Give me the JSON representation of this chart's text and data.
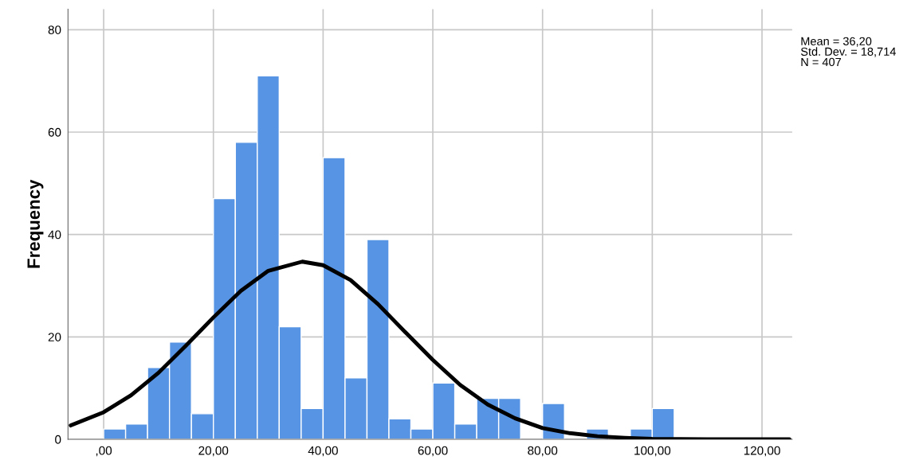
{
  "chart_data": {
    "type": "histogram",
    "ylabel": "Frequency",
    "bins": [
      0,
      4,
      8,
      12,
      16,
      20,
      24,
      28,
      32,
      36,
      40,
      44,
      48,
      52,
      56,
      60,
      64,
      68,
      72,
      76,
      80,
      84,
      88,
      92,
      96,
      100,
      104
    ],
    "values": [
      2,
      3,
      14,
      19,
      5,
      47,
      58,
      71,
      22,
      6,
      55,
      12,
      39,
      4,
      2,
      11,
      3,
      8,
      8,
      0,
      7,
      0,
      2,
      0,
      2,
      6
    ],
    "color": "#5794e3",
    "series": [
      {
        "type": "line",
        "color": "#000000",
        "x": [
          -6,
          0,
          5,
          10,
          15,
          20,
          25,
          30,
          36.2,
          40,
          45,
          50,
          55,
          60,
          65,
          70,
          75,
          80,
          85,
          90,
          95,
          100,
          110,
          125
        ],
        "values": [
          2.7,
          5.3,
          8.6,
          13.0,
          18.3,
          23.8,
          29.0,
          32.9,
          34.7,
          34.0,
          31.1,
          26.4,
          20.9,
          15.5,
          10.6,
          6.8,
          4.1,
          2.2,
          1.2,
          0.6,
          0.3,
          0.1,
          0.0,
          0.0
        ]
      }
    ],
    "xlim": [
      -6.5,
      125.5
    ],
    "ylim": [
      0,
      84
    ],
    "xticks": [
      {
        "value": 0,
        "label": ",00"
      },
      {
        "value": 20,
        "label": "20,00"
      },
      {
        "value": 40,
        "label": "40,00"
      },
      {
        "value": 60,
        "label": "60,00"
      },
      {
        "value": 80,
        "label": "80,00"
      },
      {
        "value": 100,
        "label": "100,00"
      },
      {
        "value": 120,
        "label": "120,00"
      }
    ],
    "yticks": [
      0,
      20,
      40,
      60,
      80
    ],
    "grid": true,
    "legend": false,
    "annotations": [
      "Mean = 36,20\nStd. Dev. = 18,714\nN = 407"
    ]
  }
}
